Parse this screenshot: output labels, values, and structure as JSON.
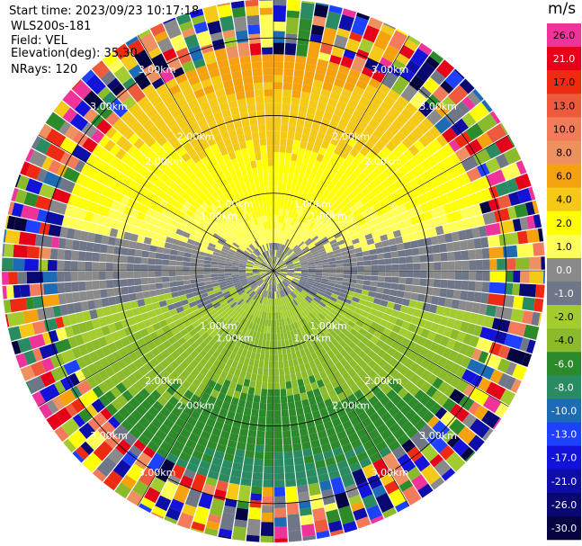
{
  "header": {
    "start_time": "Start time: 2023/09/23 10:17:18",
    "instrument": "WLS200s-181",
    "field": "Field: VEL",
    "elevation": "Elevation(deg): 35.30",
    "nrays": "NRays: 120"
  },
  "colorbar": {
    "unit": "m/s",
    "bins": [
      {
        "label": "26.0",
        "color": "#f0339b"
      },
      {
        "label": "21.0",
        "color": "#e6001a"
      },
      {
        "label": "17.0",
        "color": "#ee2a12"
      },
      {
        "label": "13.0",
        "color": "#ee5a3c"
      },
      {
        "label": "10.0",
        "color": "#f37a5a"
      },
      {
        "label": "8.0",
        "color": "#ee9060"
      },
      {
        "label": "6.0",
        "color": "#f5a20e"
      },
      {
        "label": "4.0",
        "color": "#f5c918"
      },
      {
        "label": "2.0",
        "color": "#ffff00"
      },
      {
        "label": "1.0",
        "color": "#ffff57"
      },
      {
        "label": "0.0",
        "color": "#8a8a8a"
      },
      {
        "label": "-1.0",
        "color": "#6e7688"
      },
      {
        "label": "-2.0",
        "color": "#a4cc30"
      },
      {
        "label": "-4.0",
        "color": "#8bbb2b"
      },
      {
        "label": "-6.0",
        "color": "#2d8a2a"
      },
      {
        "label": "-8.0",
        "color": "#2a8b62"
      },
      {
        "label": "-10.0",
        "color": "#1e6bb5"
      },
      {
        "label": "-13.0",
        "color": "#1e40ff"
      },
      {
        "label": "-17.0",
        "color": "#1212d8"
      },
      {
        "label": "-21.0",
        "color": "#0d0da8"
      },
      {
        "label": "-26.0",
        "color": "#080870"
      },
      {
        "label": "-30.0",
        "color": "#040440"
      }
    ]
  },
  "chart_data": {
    "type": "heatmap",
    "projection": "polar PPI",
    "field": "VEL",
    "units": "m/s",
    "n_rays": 120,
    "range_rings_km": [
      1.0,
      2.0,
      3.0
    ],
    "range_ring_labels": [
      "1.00km",
      "2.00km",
      "3.00km"
    ],
    "max_range_km": 3.5,
    "azimuth_gridlines_deg": [
      0,
      30,
      60,
      90,
      120,
      150,
      180,
      210,
      240,
      270,
      300,
      330
    ],
    "pattern": {
      "near_range_km": [
        0.0,
        0.3
      ],
      "valid_range_km": [
        0.3,
        2.7
      ],
      "noisy_range_km": [
        2.7,
        3.5
      ],
      "north_sector_velocity_m_s": [
        1.0,
        6.0
      ],
      "south_sector_velocity_m_s": [
        -6.0,
        -1.0
      ]
    }
  }
}
